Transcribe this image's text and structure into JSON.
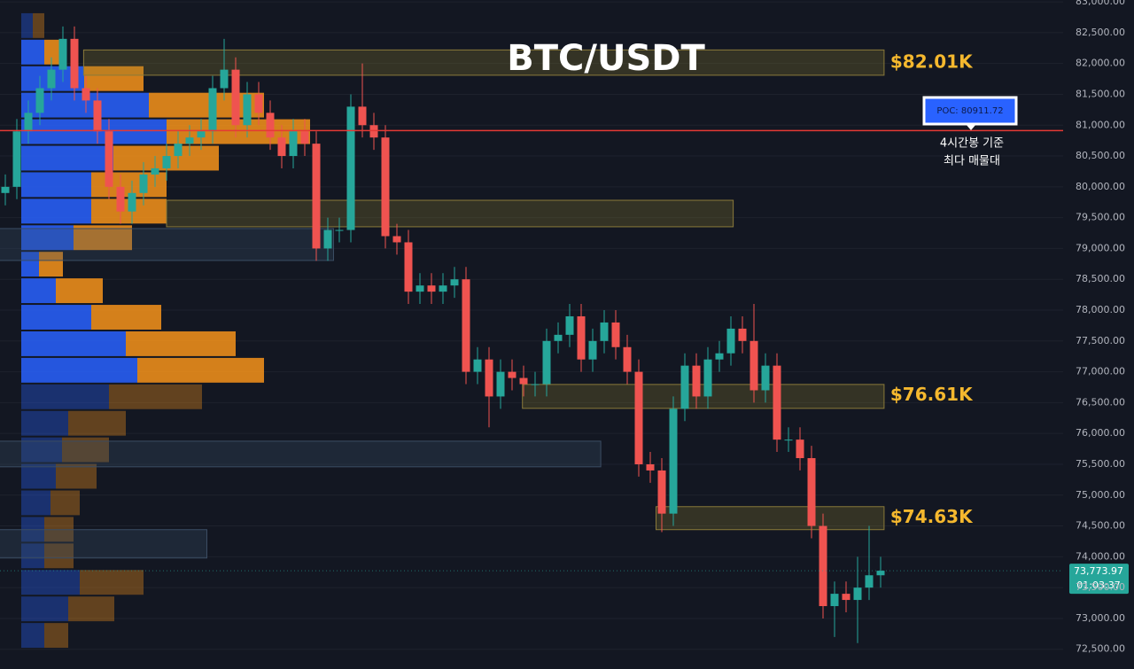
{
  "chart_data": {
    "type": "candlestick",
    "title": "BTC/USDT",
    "open": [
      79900,
      80000,
      80900,
      81200,
      81600,
      81900,
      82400,
      81600,
      81400,
      80900,
      80000,
      79600,
      79900,
      80200,
      80300,
      80500,
      80700,
      80800,
      80900,
      81600,
      81900,
      81000,
      81500,
      81200,
      80800,
      80500,
      80900,
      80700,
      79000,
      79300,
      79300,
      81300,
      81000,
      80800,
      79200,
      79100,
      78300,
      78400,
      78300,
      78400,
      78500,
      77000,
      77200,
      76600,
      77000,
      76900,
      76800,
      76800,
      77500,
      77600,
      77900,
      77200,
      77500,
      77800,
      77400,
      77000,
      75500,
      75400,
      74700,
      76400,
      77100,
      76600,
      77200,
      77300,
      77700,
      77500,
      76700,
      77100,
      75900,
      75900,
      75600,
      74500,
      73200,
      73400,
      73300,
      73500,
      73700
    ],
    "high": [
      80200,
      81100,
      81400,
      81800,
      82100,
      82600,
      82600,
      81800,
      81600,
      81100,
      80200,
      80100,
      80400,
      80500,
      80700,
      80900,
      81000,
      81100,
      81800,
      82400,
      82100,
      81700,
      81700,
      81400,
      81000,
      81100,
      81100,
      80900,
      79500,
      79500,
      81500,
      82000,
      81200,
      81000,
      79400,
      79300,
      78600,
      78600,
      78600,
      78700,
      78700,
      77400,
      77400,
      77200,
      77200,
      77100,
      77000,
      77700,
      77800,
      78100,
      78100,
      77700,
      78000,
      78000,
      77600,
      77200,
      75700,
      75600,
      76600,
      77300,
      77300,
      77400,
      77500,
      77900,
      77900,
      78100,
      77300,
      77300,
      76100,
      76100,
      75800,
      74700,
      73600,
      73600,
      74000,
      74500,
      74000
    ],
    "low": [
      79700,
      79800,
      80700,
      81000,
      81400,
      81700,
      81400,
      81200,
      80700,
      79800,
      79400,
      79400,
      79700,
      80000,
      80100,
      80300,
      80500,
      80600,
      80700,
      81400,
      80800,
      80800,
      81000,
      80600,
      80300,
      80300,
      80500,
      78800,
      78800,
      79100,
      79100,
      80800,
      80600,
      79000,
      78900,
      78100,
      78100,
      78100,
      78100,
      78200,
      76800,
      76800,
      76100,
      76400,
      76700,
      76600,
      76600,
      76600,
      77300,
      77400,
      77000,
      77000,
      77300,
      77200,
      76800,
      75300,
      75200,
      74400,
      74500,
      76200,
      76400,
      76400,
      77000,
      77100,
      77300,
      76500,
      76500,
      75700,
      75700,
      75400,
      74300,
      73000,
      72700,
      73100,
      72600,
      73300,
      73500
    ],
    "close": [
      80000,
      80900,
      81200,
      81600,
      81900,
      82400,
      81600,
      81400,
      80900,
      80000,
      79600,
      79900,
      80200,
      80300,
      80500,
      80700,
      80800,
      80900,
      81600,
      81900,
      81000,
      81500,
      81200,
      80800,
      80500,
      80900,
      80700,
      79000,
      79300,
      79300,
      81300,
      81000,
      80800,
      79200,
      79100,
      78300,
      78400,
      78300,
      78400,
      78500,
      77000,
      77200,
      76600,
      77000,
      76900,
      76800,
      76800,
      77500,
      77600,
      77900,
      77200,
      77500,
      77800,
      77400,
      77000,
      75500,
      75400,
      74700,
      76400,
      77100,
      76600,
      77200,
      77300,
      77700,
      77500,
      76700,
      77100,
      75900,
      75900,
      75600,
      74500,
      73200,
      73400,
      73300,
      73500,
      73700,
      73774
    ],
    "up_color": "#26a69a",
    "down_color": "#ef5350",
    "ylim": [
      72180,
      83030
    ],
    "yticks": [
      {
        "value": 83000,
        "label": "83,000.00"
      },
      {
        "value": 82500,
        "label": "82,500.00"
      },
      {
        "value": 82000,
        "label": "82,000.00"
      },
      {
        "value": 81500,
        "label": "81,500.00"
      },
      {
        "value": 81000,
        "label": "81,000.00"
      },
      {
        "value": 80500,
        "label": "80,500.00"
      },
      {
        "value": 80000,
        "label": "80,000.00"
      },
      {
        "value": 79500,
        "label": "79,500.00"
      },
      {
        "value": 79000,
        "label": "79,000.00"
      },
      {
        "value": 78500,
        "label": "78,500.00"
      },
      {
        "value": 78000,
        "label": "78,000.00"
      },
      {
        "value": 77500,
        "label": "77,500.00"
      },
      {
        "value": 77000,
        "label": "77,000.00"
      },
      {
        "value": 76500,
        "label": "76,500.00"
      },
      {
        "value": 76000,
        "label": "76,000.00"
      },
      {
        "value": 75500,
        "label": "75,500.00"
      },
      {
        "value": 75000,
        "label": "75,000.00"
      },
      {
        "value": 74500,
        "label": "74,500.00"
      },
      {
        "value": 74000,
        "label": "74,000.00"
      },
      {
        "value": 73500,
        "label": "73,500.00"
      },
      {
        "value": 73000,
        "label": "73,000.00"
      },
      {
        "value": 72500,
        "label": "72,500.00"
      }
    ],
    "grid": true,
    "poc": {
      "value": 80911.72,
      "label": "POC: 80911.72",
      "color": "#e53935",
      "note": [
        "4시간봉 기준",
        "최다 매물대"
      ]
    },
    "last_price": {
      "value": 73773.97,
      "label": "73,773.97",
      "countdown": "01:03:37"
    },
    "zones": [
      {
        "label": "$82.01K",
        "value": 82010,
        "ylim": [
          81810,
          82220
        ],
        "xrange": [
          6.8,
          76.3
        ],
        "color": "yellow"
      },
      {
        "ylim": [
          79352,
          79782
        ],
        "xrange": [
          14,
          63.2
        ],
        "color": "yellow"
      },
      {
        "ylim": [
          78806,
          79323
        ],
        "xrange": [
          -0.5,
          28.5
        ],
        "color": "blue"
      },
      {
        "label": "$76.61K",
        "value": 76610,
        "ylim": [
          76407,
          76795
        ],
        "xrange": [
          44.9,
          76.3
        ],
        "color": "yellow"
      },
      {
        "ylim": [
          75459,
          75875
        ],
        "xrange": [
          -0.5,
          51.7
        ],
        "color": "blue"
      },
      {
        "label": "$74.63K",
        "value": 74630,
        "ylim": [
          74440,
          74813
        ],
        "xrange": [
          56.5,
          76.3
        ],
        "color": "yellow"
      },
      {
        "ylim": [
          73980,
          74440
        ],
        "xrange": [
          -0.5,
          17.5
        ],
        "color": "blue"
      }
    ],
    "volume_profile": {
      "bins": [
        82830,
        82400,
        81970,
        81540,
        81110,
        80680,
        80250,
        79820,
        79390,
        78960,
        78530,
        78100,
        77670,
        77240,
        76810,
        76380,
        75950,
        75520,
        75090,
        74660,
        74230,
        73800,
        73370,
        72940,
        72510
      ],
      "buy": [
        13,
        26,
        71,
        144,
        164,
        104,
        79,
        79,
        59,
        20,
        39,
        79,
        118,
        131,
        99,
        53,
        46,
        39,
        33,
        26,
        26,
        66,
        53,
        26
      ],
      "sell": [
        13,
        18,
        67,
        130,
        162,
        119,
        85,
        85,
        66,
        27,
        53,
        79,
        124,
        143,
        105,
        65,
        53,
        46,
        33,
        33,
        33,
        72,
        52,
        27
      ],
      "value_area": [
        76810,
        82400
      ],
      "buy_color": "#2962ff",
      "sell_color": "#f7931a"
    }
  }
}
